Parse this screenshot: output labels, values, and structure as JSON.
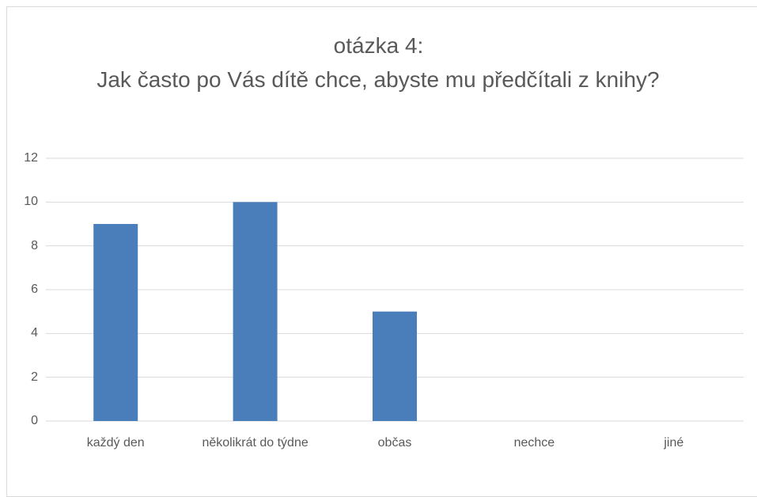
{
  "chart_data": {
    "type": "bar",
    "title": [
      "otázka 4:",
      "Jak často po Vás dítě chce, abyste mu předčítali z knihy?"
    ],
    "categories": [
      "každý den",
      "několikrát do týdne",
      "občas",
      "nechce",
      "jiné"
    ],
    "values": [
      9,
      10,
      5,
      0,
      0
    ],
    "color": "#4a7ebb",
    "ylim": [
      0,
      12
    ],
    "yticks": [
      0,
      2,
      4,
      6,
      8,
      10,
      12
    ],
    "grid": true
  }
}
